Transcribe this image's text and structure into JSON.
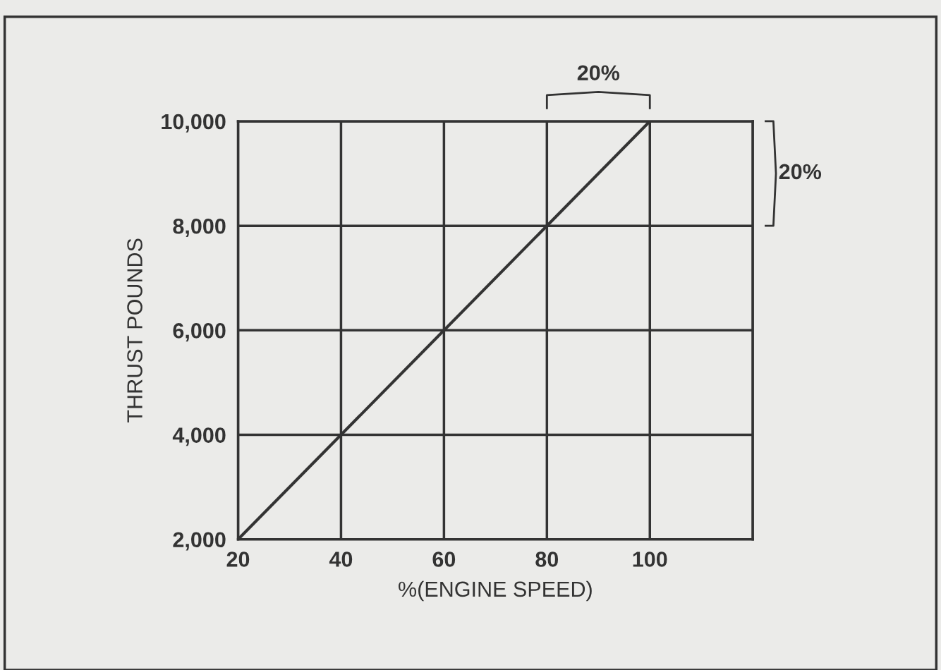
{
  "chart_data": {
    "type": "line",
    "xlabel": "%(ENGINE SPEED)",
    "ylabel": "THRUST POUNDS",
    "x": [
      20,
      100
    ],
    "series": [
      {
        "color": "#333333",
        "values": [
          2000,
          10000
        ]
      }
    ],
    "xlim": [
      20,
      120
    ],
    "xticks": [
      20,
      40,
      60,
      80,
      100,
      {
        "value": 120,
        "label": null
      }
    ],
    "ylim": [
      2000,
      10000
    ],
    "yticks": [
      {
        "value": 2000,
        "label": "2,000"
      },
      {
        "value": 4000,
        "label": "4,000"
      },
      {
        "value": 6000,
        "label": "6,000"
      },
      {
        "value": 8000,
        "label": "8,000"
      },
      {
        "value": 10000,
        "label": "10,000"
      }
    ],
    "grid": true,
    "marker": "none",
    "line_style": "solid",
    "annotations": [
      "20%",
      "20%"
    ]
  }
}
